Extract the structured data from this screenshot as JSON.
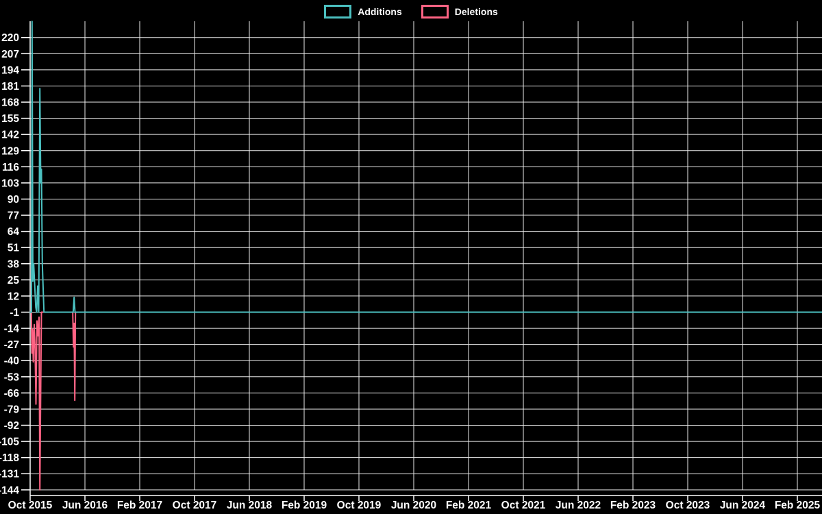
{
  "chart_data": {
    "type": "line",
    "title": "",
    "legend": {
      "position": "top"
    },
    "background_color": "#000000",
    "grid_color": "#ededed",
    "axis_color": "#ffffff",
    "text_color": "#ffffff",
    "x_axis": {
      "label": "",
      "unit": "month",
      "months_per_tick": 8,
      "tick_labels": [
        "Oct 2015",
        "Jun 2016",
        "Feb 2017",
        "Oct 2017",
        "Jun 2018",
        "Feb 2019",
        "Oct 2019",
        "Jun 2020",
        "Feb 2021",
        "Oct 2021",
        "Jun 2022",
        "Feb 2023",
        "Oct 2023",
        "Jun 2024",
        "Feb 2025"
      ]
    },
    "y_axis": {
      "label": "",
      "min": -144,
      "max": 233,
      "step": 13,
      "baseline_value": -1,
      "tick_labels": [
        "220",
        "207",
        "194",
        "181",
        "168",
        "155",
        "142",
        "129",
        "116",
        "103",
        "90",
        "77",
        "64",
        "51",
        "38",
        "25",
        "12",
        "-1",
        "-14",
        "-27",
        "-40",
        "-53",
        "-66",
        "-79",
        "-92",
        "-105",
        "-118",
        "-131",
        "-144"
      ]
    },
    "series": [
      {
        "name": "Additions",
        "color": "#4bc0c0",
        "points": [
          [
            0,
            -1
          ],
          [
            0.2,
            -1
          ],
          [
            0.28,
            233
          ],
          [
            0.4,
            24
          ],
          [
            0.52,
            38
          ],
          [
            0.68,
            19
          ],
          [
            0.82,
            3
          ],
          [
            0.95,
            -1
          ],
          [
            1.1,
            20
          ],
          [
            1.25,
            -1
          ],
          [
            1.42,
            179
          ],
          [
            1.55,
            103
          ],
          [
            1.65,
            114
          ],
          [
            1.78,
            38
          ],
          [
            1.9,
            18
          ],
          [
            2.02,
            -1
          ],
          [
            6.28,
            -1
          ],
          [
            6.42,
            11
          ],
          [
            6.55,
            -1
          ],
          [
            115.6,
            -1
          ]
        ]
      },
      {
        "name": "Deletions",
        "color": "#ff6384",
        "points": [
          [
            0,
            -1
          ],
          [
            0.18,
            -1
          ],
          [
            0.26,
            -34
          ],
          [
            0.36,
            -15
          ],
          [
            0.46,
            -41
          ],
          [
            0.6,
            -11
          ],
          [
            0.72,
            -30
          ],
          [
            0.85,
            -75
          ],
          [
            1.0,
            -8
          ],
          [
            1.15,
            -20
          ],
          [
            1.3,
            -5
          ],
          [
            1.42,
            -144
          ],
          [
            1.55,
            -60
          ],
          [
            1.65,
            -1
          ],
          [
            6.22,
            -1
          ],
          [
            6.32,
            -29
          ],
          [
            6.42,
            -10
          ],
          [
            6.52,
            -72
          ],
          [
            6.62,
            -1
          ],
          [
            115.6,
            -1
          ]
        ]
      }
    ]
  }
}
